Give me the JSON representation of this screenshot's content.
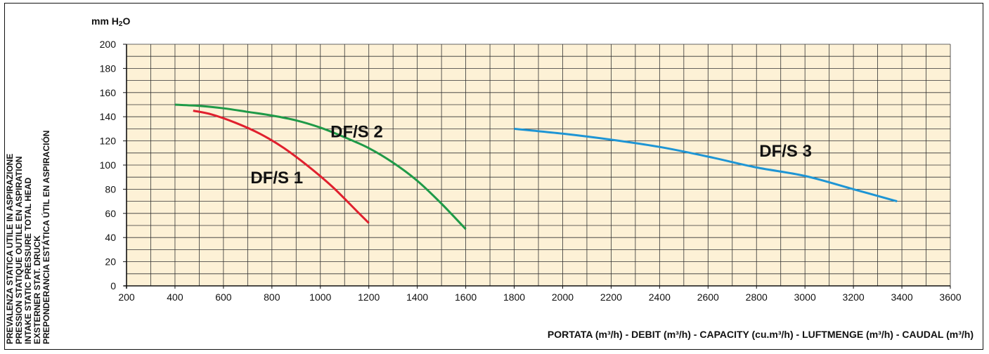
{
  "chart_data": {
    "type": "line",
    "unit_label": "mm H2O",
    "xlabel": "PORTATA (m³/h) - DEBIT (m³/h) - CAPACITY (cu.m³/h) - LUFTMENGE (m³/h) - CAUDAL (m³/h)",
    "ylabel_lines": [
      "PREVALENZA STATICA UTILE IN ASPIRAZIONE",
      "PRESSION STATIQUE OUTILE EN ASPIRATION",
      "INTAKE STATIC PRESSURE TOTAL HEAD",
      "EXSTERNER STAT. DRUCK",
      "PREPONDERANCIA ESTÁTICA ÚTIL EN ASPIRACIÓN"
    ],
    "xlim": [
      200,
      3600
    ],
    "ylim": [
      0,
      200
    ],
    "x_ticks": [
      200,
      400,
      600,
      800,
      1000,
      1200,
      1400,
      1600,
      1800,
      2000,
      2200,
      2400,
      2600,
      2800,
      3000,
      3200,
      3400,
      3600
    ],
    "y_ticks": [
      0,
      20,
      40,
      60,
      80,
      100,
      120,
      140,
      160,
      180,
      200
    ],
    "grid": true,
    "colors": {
      "background": "#fdf1d6",
      "grid": "#333333"
    },
    "series": [
      {
        "name": "DF/S 1",
        "color": "#e0202e",
        "label_at": [
          820,
          85
        ],
        "points": [
          [
            475,
            145
          ],
          [
            550,
            142
          ],
          [
            650,
            135
          ],
          [
            750,
            126
          ],
          [
            850,
            114
          ],
          [
            950,
            99
          ],
          [
            1050,
            82
          ],
          [
            1150,
            62
          ],
          [
            1200,
            52
          ]
        ]
      },
      {
        "name": "DF/S 2",
        "color": "#1f9a48",
        "label_at": [
          1150,
          123
        ],
        "points": [
          [
            400,
            150
          ],
          [
            500,
            149
          ],
          [
            600,
            147
          ],
          [
            700,
            144
          ],
          [
            800,
            141
          ],
          [
            900,
            137
          ],
          [
            1000,
            131
          ],
          [
            1100,
            123
          ],
          [
            1200,
            114
          ],
          [
            1300,
            102
          ],
          [
            1400,
            87
          ],
          [
            1500,
            68
          ],
          [
            1600,
            47
          ]
        ]
      },
      {
        "name": "DF/S 3",
        "color": "#1e95d4",
        "label_at": [
          2920,
          107
        ],
        "points": [
          [
            1800,
            130
          ],
          [
            2000,
            126
          ],
          [
            2200,
            121
          ],
          [
            2400,
            115
          ],
          [
            2600,
            107
          ],
          [
            2800,
            98
          ],
          [
            3000,
            91
          ],
          [
            3200,
            80
          ],
          [
            3380,
            70
          ]
        ]
      }
    ]
  }
}
